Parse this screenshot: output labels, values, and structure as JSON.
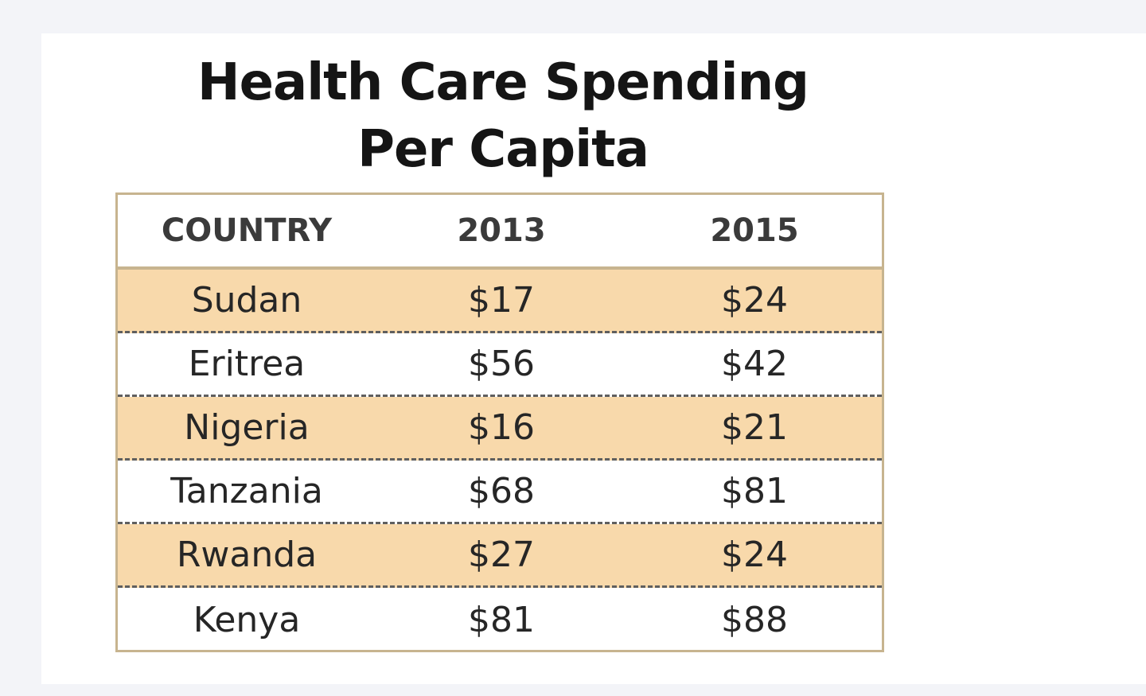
{
  "chart_data": {
    "type": "table",
    "title": "Health Care Spending Per Capita",
    "title_lines": [
      "Health Care Spending",
      "Per Capita"
    ],
    "columns": [
      "COUNTRY",
      "2013",
      "2015"
    ],
    "rows": [
      [
        "Sudan",
        "$17",
        "$24"
      ],
      [
        "Eritrea",
        "$56",
        "$42"
      ],
      [
        "Nigeria",
        "$16",
        "$21"
      ],
      [
        "Tanzania",
        "$68",
        "$81"
      ],
      [
        "Rwanda",
        "$27",
        "$24"
      ],
      [
        "Kenya",
        "$81",
        "$88"
      ]
    ],
    "colors": {
      "row_stripe": "#f8d9ab",
      "border": "#c7b48f",
      "dash": "#5f5f5f"
    }
  }
}
